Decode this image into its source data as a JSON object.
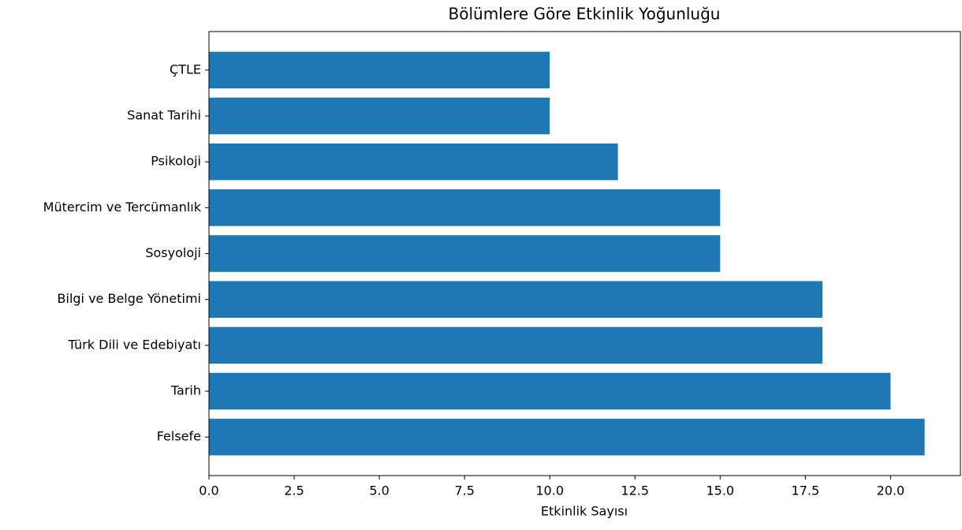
{
  "chart_data": {
    "type": "barh",
    "title": "Bölümlere Göre Etkinlik Yoğunluğu",
    "x_label": "Etkinlik Sayısı",
    "categories": [
      "ÇTLE",
      "Sanat Tarihi",
      "Psikoloji",
      "Mütercim ve Tercümanlık",
      "Sosyoloji",
      "Bilgi ve Belge Yönetimi",
      "Türk Dili ve Edebiyatı",
      "Tarih",
      "Felsefe"
    ],
    "values": [
      10,
      10,
      12,
      15,
      15,
      18,
      18,
      20,
      21
    ],
    "color": "#1f77b4",
    "xlim": [
      0,
      22.05
    ],
    "xticks": [
      {
        "value": 0,
        "label": "0.0"
      },
      2.5,
      {
        "value": 5,
        "label": "5.0"
      },
      7.5,
      {
        "value": 10,
        "label": "10.0"
      },
      12.5,
      {
        "value": 15,
        "label": "15.0"
      },
      17.5,
      {
        "value": 20,
        "label": "20.0"
      }
    ],
    "grid": false
  }
}
